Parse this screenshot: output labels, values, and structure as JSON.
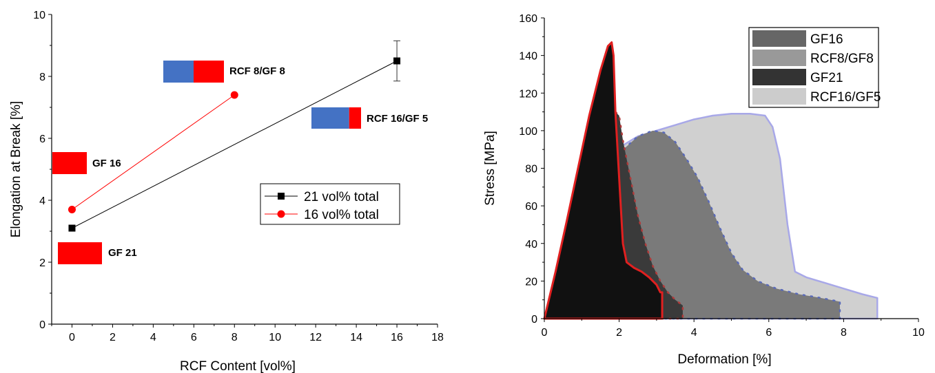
{
  "chart_data": [
    {
      "type": "scatter",
      "title": "",
      "xlabel": "RCF Content [vol%]",
      "ylabel": "Elongation at Break [%]",
      "xlim": [
        -1,
        18
      ],
      "ylim": [
        0,
        10
      ],
      "xticks": [
        0,
        2,
        4,
        6,
        8,
        10,
        12,
        14,
        16,
        18
      ],
      "yticks": [
        0,
        2,
        4,
        6,
        8,
        10
      ],
      "legend_position": "center-right",
      "series": [
        {
          "name": "21 vol% total",
          "color": "#000000",
          "marker": "square",
          "x": [
            0,
            16
          ],
          "y": [
            3.1,
            8.5
          ],
          "yerr": [
            0,
            0.65
          ]
        },
        {
          "name": "16 vol% total",
          "color": "#ff0000",
          "marker": "circle",
          "x": [
            0,
            8
          ],
          "y": [
            3.7,
            7.4
          ]
        }
      ],
      "annotations": [
        {
          "text": "RCF 8/GF 8",
          "rcf_fraction": 0.5
        },
        {
          "text": "RCF 16/GF 5",
          "rcf_fraction": 0.76
        },
        {
          "text": "GF 16",
          "rcf_fraction": 0
        },
        {
          "text": "GF 21",
          "rcf_fraction": 0
        }
      ],
      "annotation_colors": {
        "rcf": "#4472c4",
        "gf": "#ff0000"
      }
    },
    {
      "type": "area",
      "title": "",
      "xlabel": "Deformation [%]",
      "ylabel": "Stress [MPa]",
      "xlim": [
        0,
        10
      ],
      "ylim": [
        0,
        160
      ],
      "xticks": [
        0,
        2,
        4,
        6,
        8,
        10
      ],
      "yticks": [
        0,
        20,
        40,
        60,
        80,
        100,
        120,
        140,
        160
      ],
      "legend_position": "top-right",
      "legend": [
        {
          "name": "GF16",
          "color": "#666666"
        },
        {
          "name": "RCF8/GF8",
          "color": "#999999"
        },
        {
          "name": "GF21",
          "color": "#333333"
        },
        {
          "name": "RCF16/GF5",
          "color": "#cccccc"
        }
      ],
      "series": [
        {
          "name": "RCF16/GF5",
          "fill": "#d0d0d0",
          "stroke": "#a8a8e8",
          "x": [
            0,
            0.5,
            1.0,
            1.5,
            2.0,
            2.5,
            3.0,
            3.5,
            4.0,
            4.5,
            5.0,
            5.5,
            5.9,
            6.1,
            6.3,
            6.5,
            6.7,
            7.0,
            7.5,
            8.0,
            8.5,
            8.9,
            8.9
          ],
          "y": [
            0,
            35,
            62,
            80,
            91,
            97,
            100,
            103,
            106,
            108,
            109,
            109,
            108,
            102,
            85,
            50,
            25,
            22,
            19,
            16,
            13,
            11,
            0
          ]
        },
        {
          "name": "RCF8/GF8",
          "fill": "#7a7a7a",
          "stroke": "#5a6ab8",
          "x": [
            0,
            0.5,
            1.0,
            1.5,
            2.0,
            2.5,
            2.9,
            3.2,
            3.5,
            3.8,
            4.1,
            4.4,
            4.7,
            5.0,
            5.3,
            5.7,
            6.2,
            6.8,
            7.4,
            7.9,
            7.9
          ],
          "y": [
            0,
            32,
            58,
            75,
            88,
            97,
            100,
            99,
            94,
            85,
            75,
            62,
            48,
            35,
            26,
            20,
            16,
            13,
            11,
            9,
            0
          ]
        },
        {
          "name": "GF16",
          "fill": "#3a3a3a",
          "stroke": "#b03a3a",
          "x": [
            0,
            0.4,
            0.8,
            1.2,
            1.6,
            1.9,
            2.0,
            2.1,
            2.3,
            2.5,
            2.7,
            2.9,
            3.1,
            3.3,
            3.5,
            3.7,
            3.7
          ],
          "y": [
            0,
            25,
            52,
            78,
            100,
            110,
            108,
            95,
            75,
            55,
            40,
            28,
            20,
            14,
            10,
            7,
            0
          ]
        },
        {
          "name": "GF21",
          "fill": "#111111",
          "stroke": "#e02020",
          "x": [
            0,
            0.3,
            0.6,
            0.9,
            1.2,
            1.5,
            1.7,
            1.8,
            1.85,
            1.9,
            2.0,
            2.1,
            2.2,
            2.4,
            2.6,
            2.8,
            3.0,
            3.1,
            3.15,
            3.15
          ],
          "y": [
            0,
            25,
            52,
            80,
            108,
            132,
            145,
            147,
            140,
            110,
            75,
            40,
            30,
            27,
            25,
            22,
            18,
            14,
            14,
            0
          ]
        }
      ]
    }
  ]
}
